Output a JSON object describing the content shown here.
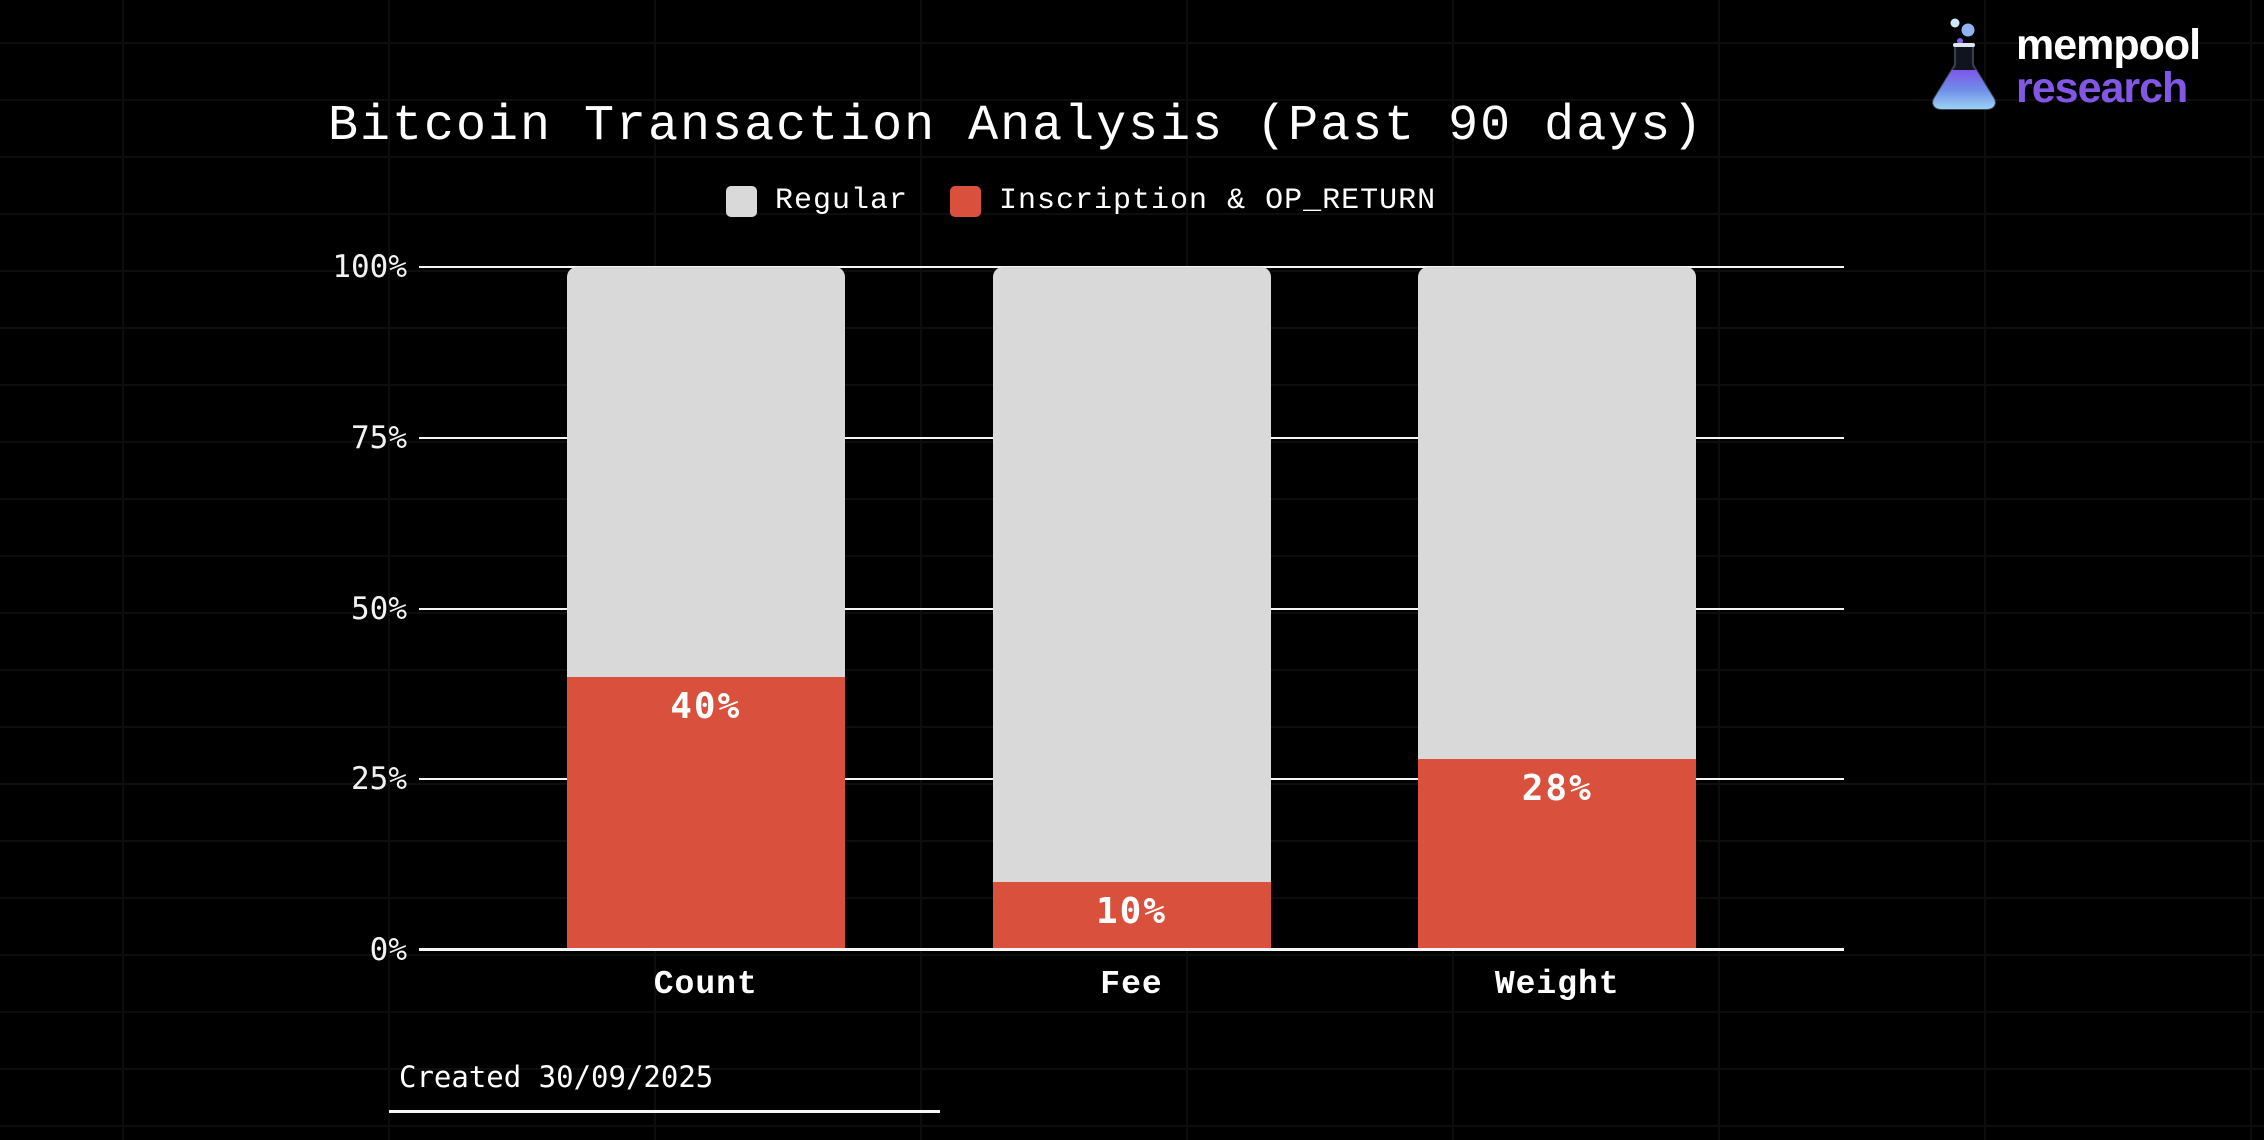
{
  "header": {
    "title": "Bitcoin Transaction Analysis (Past 90 days)"
  },
  "logo": {
    "line1": "mempool",
    "line2": "research",
    "accent_color": "#8257e5",
    "icon": "flask-icon"
  },
  "legend": [
    {
      "label": "Regular",
      "color": "#d9d9d9"
    },
    {
      "label": "Inscription & OP_RETURN",
      "color": "#d9503c"
    }
  ],
  "chart_data": {
    "type": "bar",
    "stacked": true,
    "title": "Bitcoin Transaction Analysis (Past 90 days)",
    "categories": [
      "Count",
      "Fee",
      "Weight"
    ],
    "series": [
      {
        "name": "Regular",
        "color": "#d9d9d9",
        "values": [
          60,
          90,
          72
        ]
      },
      {
        "name": "Inscription & OP_RETURN",
        "color": "#d9503c",
        "values": [
          40,
          10,
          28
        ]
      }
    ],
    "bar_labels": [
      "40%",
      "10%",
      "28%"
    ],
    "xlabel": "",
    "ylabel": "",
    "ylim": [
      0,
      100
    ],
    "yticks": [
      "100%",
      "75%",
      "50%",
      "25%",
      "0%"
    ],
    "ytick_values": [
      100,
      75,
      50,
      25,
      0
    ],
    "grid": true,
    "gridline_color": "#f5f5f5",
    "legend_position": "top",
    "value_label_color": "#ffffff"
  },
  "footer": {
    "created": "Created 30/09/2025"
  },
  "colors": {
    "background": "#000000",
    "text": "#ffffff",
    "bar_regular": "#d9d9d9",
    "bar_inscription": "#d9503c",
    "logo_accent": "#8257e5"
  }
}
